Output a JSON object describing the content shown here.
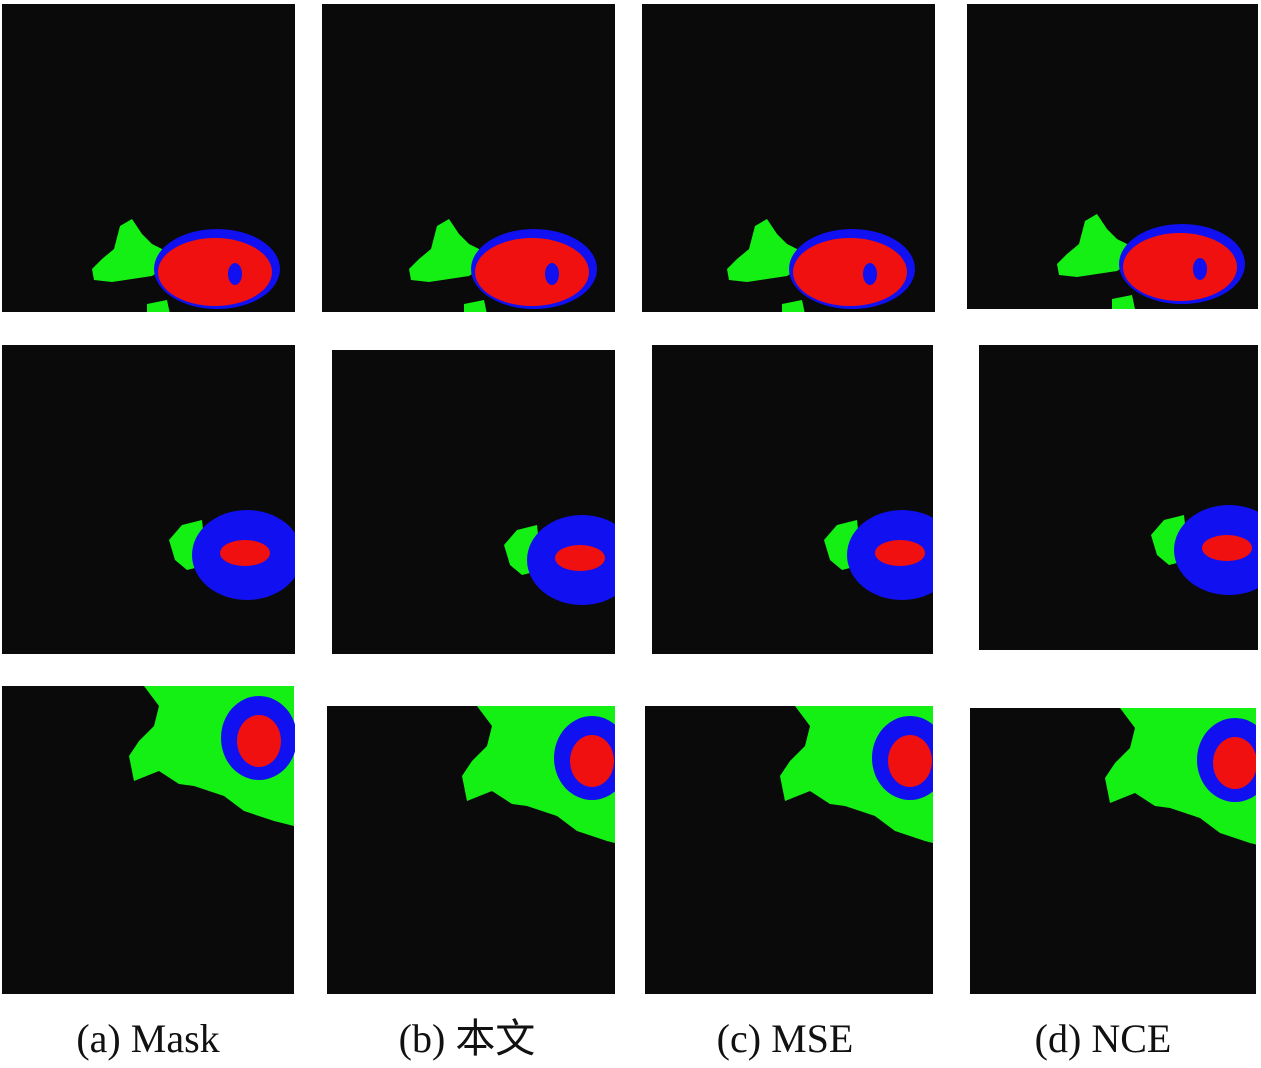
{
  "captions": [
    "(a) Mask",
    "(b) 本文",
    "(c) MSE",
    "(d) NCE"
  ]
}
